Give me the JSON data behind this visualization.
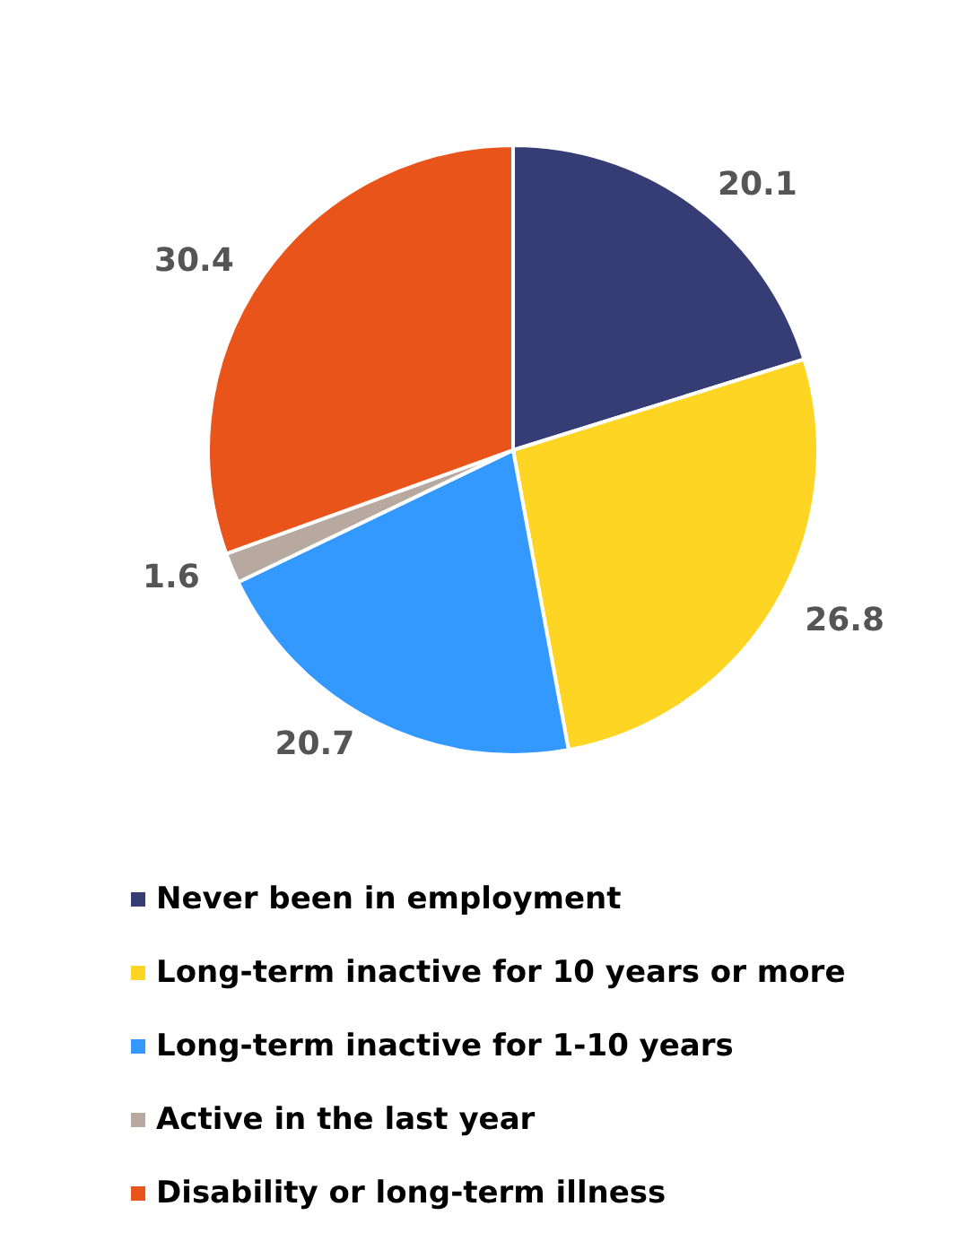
{
  "chart_data": {
    "type": "pie",
    "categories": [
      "Never been in employment",
      "Long-term inactive for 10 years or more",
      "Long-term inactive for 1-10 years",
      "Active in the last year",
      "Disability or long-term illness"
    ],
    "values": [
      20.1,
      26.8,
      20.7,
      1.6,
      30.4
    ],
    "colors": [
      "#363c74",
      "#ffd524",
      "#3399ff",
      "#b7a99f",
      "#e8541a"
    ],
    "data_labels": true,
    "legend": "bottom"
  }
}
